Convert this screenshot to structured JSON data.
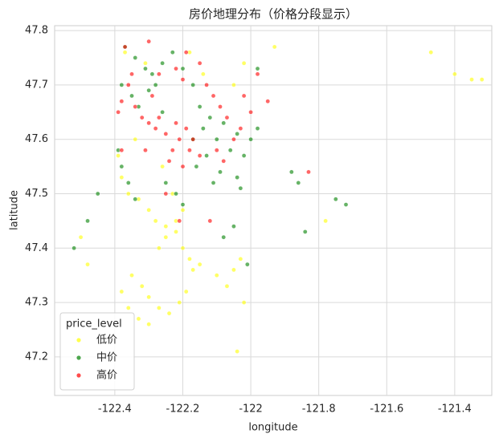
{
  "chart_data": {
    "type": "scatter",
    "title": "房价地理分布（价格分段显示）",
    "x_label": "longitude",
    "y_label": "latitude",
    "xlim": [
      -122.577,
      -121.291
    ],
    "ylim": [
      47.129,
      47.809
    ],
    "xticks": [
      -122.4,
      -122.2,
      -122.0,
      -121.8,
      -121.6,
      -121.4
    ],
    "yticks": [
      47.2,
      47.3,
      47.4,
      47.5,
      47.6,
      47.7,
      47.8
    ],
    "grid": true,
    "legend_title": "price_level",
    "legend_position": "lower left",
    "series": [
      {
        "name": "低价",
        "color": "#ffff00",
        "x": [
          -122.38,
          -122.36,
          -122.33,
          -122.3,
          -122.28,
          -122.25,
          -122.22,
          -122.2,
          -122.18,
          -122.35,
          -122.32,
          -122.3,
          -122.27,
          -122.24,
          -122.21,
          -122.19,
          -122.17,
          -122.15,
          -122.1,
          -122.07,
          -122.05,
          -122.03,
          -122.02,
          -122.04,
          -122.38,
          -122.36,
          -122.33,
          -122.3,
          -122.27,
          -122.25,
          -122.22,
          -122.2,
          -122.23,
          -122.26,
          -122.34,
          -122.39,
          -122.37,
          -122.31,
          -122.18,
          -122.14,
          -122.05,
          -122.02,
          -122.48,
          -122.5,
          -121.47,
          -121.4,
          -121.35,
          -121.32,
          -121.78,
          -121.93
        ],
        "values": [
          47.53,
          47.5,
          47.49,
          47.47,
          47.45,
          47.44,
          47.43,
          47.4,
          47.38,
          47.35,
          47.33,
          47.31,
          47.29,
          47.28,
          47.3,
          47.32,
          47.36,
          47.37,
          47.35,
          47.33,
          47.36,
          47.38,
          47.3,
          47.21,
          47.32,
          47.29,
          47.27,
          47.26,
          47.4,
          47.42,
          47.45,
          47.47,
          47.5,
          47.55,
          47.6,
          47.57,
          47.76,
          47.74,
          47.76,
          47.72,
          47.7,
          47.74,
          47.37,
          47.42,
          47.76,
          47.72,
          47.71,
          47.71,
          47.45,
          47.77
        ]
      },
      {
        "name": "中价",
        "color": "#008000",
        "x": [
          -122.37,
          -122.34,
          -122.31,
          -122.29,
          -122.26,
          -122.23,
          -122.2,
          -122.17,
          -122.38,
          -122.35,
          -122.33,
          -122.3,
          -122.17,
          -122.14,
          -122.12,
          -122.1,
          -122.08,
          -122.06,
          -122.04,
          -122.02,
          -122.0,
          -121.98,
          -122.16,
          -122.13,
          -122.11,
          -122.09,
          -122.39,
          -122.38,
          -122.36,
          -122.34,
          -122.25,
          -122.22,
          -122.2,
          -122.04,
          -122.03,
          -121.88,
          -121.86,
          -121.75,
          -121.72,
          -121.98,
          -122.45,
          -122.52,
          -122.48,
          -122.08,
          -122.05,
          -122.01,
          -122.28,
          -122.15,
          -122.26,
          -121.84
        ],
        "values": [
          47.77,
          47.75,
          47.73,
          47.72,
          47.74,
          47.76,
          47.73,
          47.7,
          47.7,
          47.68,
          47.66,
          47.69,
          47.6,
          47.62,
          47.64,
          47.6,
          47.63,
          47.58,
          47.61,
          47.57,
          47.6,
          47.62,
          47.55,
          47.57,
          47.52,
          47.54,
          47.58,
          47.55,
          47.52,
          47.49,
          47.52,
          47.5,
          47.48,
          47.53,
          47.51,
          47.54,
          47.52,
          47.49,
          47.48,
          47.73,
          47.5,
          47.4,
          47.45,
          47.42,
          47.44,
          47.37,
          47.7,
          47.66,
          47.65,
          47.43
        ]
      },
      {
        "name": "高价",
        "color": "#ff0000",
        "x": [
          -122.39,
          -122.38,
          -122.36,
          -122.34,
          -122.32,
          -122.3,
          -122.28,
          -122.27,
          -122.25,
          -122.22,
          -122.21,
          -122.19,
          -122.18,
          -122.23,
          -122.24,
          -122.2,
          -122.17,
          -122.15,
          -122.13,
          -122.11,
          -122.09,
          -122.07,
          -122.05,
          -122.03,
          -122.0,
          -122.02,
          -122.1,
          -122.08,
          -122.2,
          -122.22,
          -122.27,
          -122.29,
          -122.31,
          -122.35,
          -122.37,
          -122.38,
          -121.95,
          -121.98,
          -122.19,
          -122.15,
          -122.3,
          -121.83,
          -122.25,
          -122.21,
          -122.12
        ],
        "values": [
          47.65,
          47.67,
          47.7,
          47.66,
          47.64,
          47.63,
          47.62,
          47.64,
          47.61,
          47.63,
          47.6,
          47.62,
          47.58,
          47.58,
          47.56,
          47.55,
          47.6,
          47.57,
          47.7,
          47.68,
          47.66,
          47.64,
          47.6,
          47.62,
          47.65,
          47.68,
          47.58,
          47.56,
          47.71,
          47.73,
          47.72,
          47.68,
          47.58,
          47.72,
          47.77,
          47.58,
          47.67,
          47.72,
          47.76,
          47.74,
          47.78,
          47.54,
          47.5,
          47.45,
          47.45
        ]
      }
    ]
  }
}
